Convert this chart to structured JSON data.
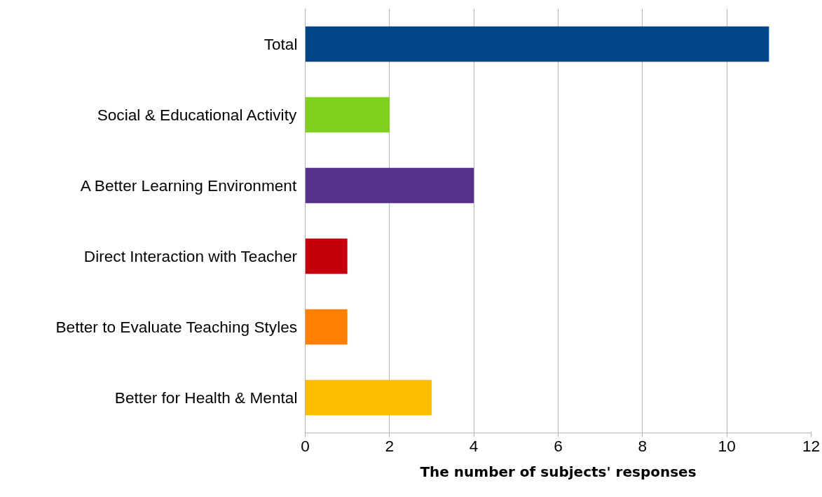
{
  "chart_data": {
    "type": "bar",
    "orientation": "horizontal",
    "xlabel": "The number of subjects' responses",
    "categories": [
      "Total",
      "Social & Educational Activity",
      "A Better Learning Environment",
      "Direct Interaction with Teacher",
      "Better to Evaluate Teaching Styles",
      "Better for Health & Mental"
    ],
    "values": [
      11,
      2,
      4,
      1,
      1,
      3
    ],
    "colors": [
      "#004586",
      "#7fd11b",
      "#55308d",
      "#c5000b",
      "#ff8000",
      "#ffbf00"
    ],
    "xlim": [
      0,
      12
    ],
    "xticks": [
      0,
      2,
      4,
      6,
      8,
      10,
      12
    ],
    "grid": "x"
  }
}
